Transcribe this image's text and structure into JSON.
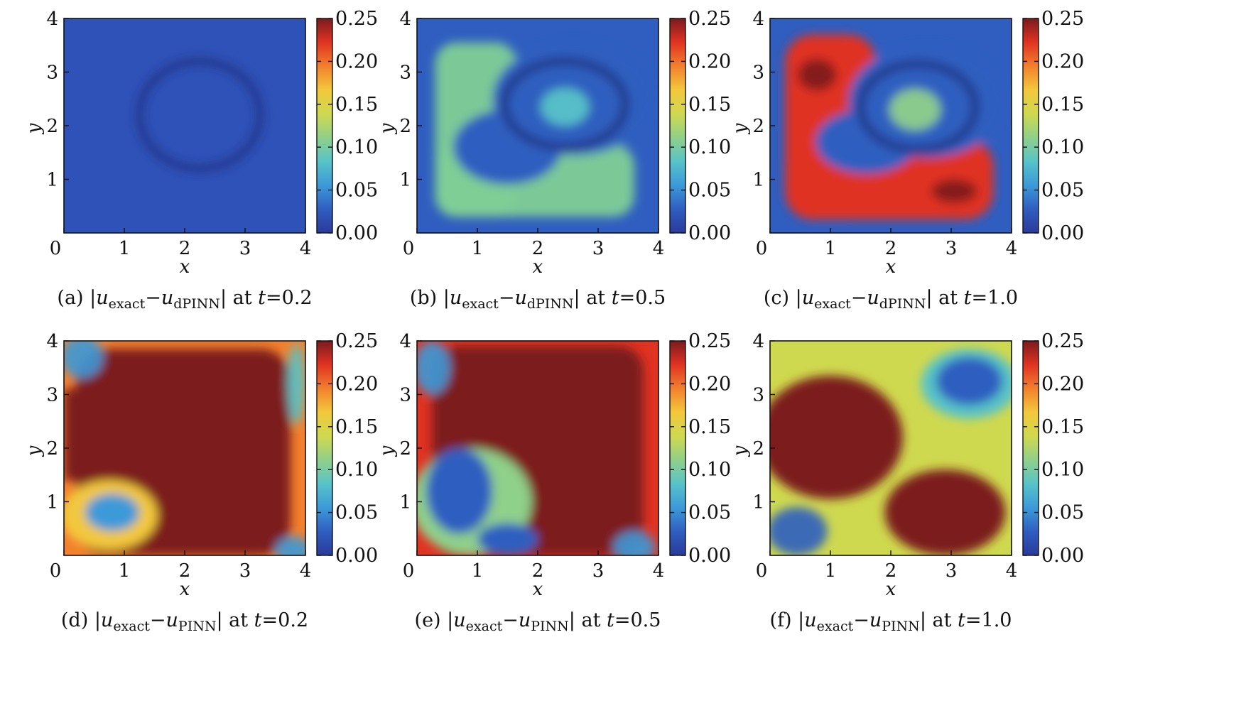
{
  "chart_data": [
    {
      "type": "heatmap",
      "caption": {
        "prefix": "(a) |",
        "u1": "u",
        "sub1": "exact",
        "minus": "−",
        "u2": "u",
        "sub2": "dPINN",
        "mid": "| at ",
        "t": "t",
        "eq": "=",
        "tval": "0.2"
      },
      "field": "dpinn_t02",
      "xlabel": "x",
      "ylabel": "y",
      "xlim": [
        0,
        4
      ],
      "ylim": [
        0,
        4
      ],
      "xticks": [
        "0",
        "1",
        "2",
        "3",
        "4"
      ],
      "yticks": [
        "1",
        "2",
        "3",
        "4"
      ],
      "colorbar": {
        "min": 0.0,
        "max": 0.25,
        "ticks": [
          "0.00",
          "0.05",
          "0.10",
          "0.15",
          "0.20",
          "0.25"
        ]
      }
    },
    {
      "type": "heatmap",
      "caption": {
        "prefix": "(b) |",
        "u1": "u",
        "sub1": "exact",
        "minus": "−",
        "u2": "u",
        "sub2": "dPINN",
        "mid": "| at ",
        "t": "t",
        "eq": "=",
        "tval": "0.5"
      },
      "field": "dpinn_t05",
      "xlabel": "x",
      "ylabel": "y",
      "xlim": [
        0,
        4
      ],
      "ylim": [
        0,
        4
      ],
      "xticks": [
        "0",
        "1",
        "2",
        "3",
        "4"
      ],
      "yticks": [
        "1",
        "2",
        "3",
        "4"
      ],
      "colorbar": {
        "min": 0.0,
        "max": 0.25,
        "ticks": [
          "0.00",
          "0.05",
          "0.10",
          "0.15",
          "0.20",
          "0.25"
        ]
      }
    },
    {
      "type": "heatmap",
      "caption": {
        "prefix": "(c) |",
        "u1": "u",
        "sub1": "exact",
        "minus": "−",
        "u2": "u",
        "sub2": "dPINN",
        "mid": "| at ",
        "t": "t",
        "eq": "=",
        "tval": "1.0"
      },
      "field": "dpinn_t10",
      "xlabel": "x",
      "ylabel": "y",
      "xlim": [
        0,
        4
      ],
      "ylim": [
        0,
        4
      ],
      "xticks": [
        "0",
        "1",
        "2",
        "3",
        "4"
      ],
      "yticks": [
        "1",
        "2",
        "3",
        "4"
      ],
      "colorbar": {
        "min": 0.0,
        "max": 0.25,
        "ticks": [
          "0.00",
          "0.05",
          "0.10",
          "0.15",
          "0.20",
          "0.25"
        ]
      }
    },
    {
      "type": "heatmap",
      "caption": {
        "prefix": "(d) |",
        "u1": "u",
        "sub1": "exact",
        "minus": "−",
        "u2": "u",
        "sub2": "PINN",
        "mid": "| at ",
        "t": "t",
        "eq": "=",
        "tval": "0.2"
      },
      "field": "pinn_t02",
      "xlabel": "x",
      "ylabel": "y",
      "xlim": [
        0,
        4
      ],
      "ylim": [
        0,
        4
      ],
      "xticks": [
        "0",
        "1",
        "2",
        "3",
        "4"
      ],
      "yticks": [
        "1",
        "2",
        "3",
        "4"
      ],
      "colorbar": {
        "min": 0.0,
        "max": 0.25,
        "ticks": [
          "0.00",
          "0.05",
          "0.10",
          "0.15",
          "0.20",
          "0.25"
        ]
      }
    },
    {
      "type": "heatmap",
      "caption": {
        "prefix": "(e) |",
        "u1": "u",
        "sub1": "exact",
        "minus": "−",
        "u2": "u",
        "sub2": "PINN",
        "mid": "| at ",
        "t": "t",
        "eq": "=",
        "tval": "0.5"
      },
      "field": "pinn_t05",
      "xlabel": "x",
      "ylabel": "y",
      "xlim": [
        0,
        4
      ],
      "ylim": [
        0,
        4
      ],
      "xticks": [
        "0",
        "1",
        "2",
        "3",
        "4"
      ],
      "yticks": [
        "1",
        "2",
        "3",
        "4"
      ],
      "colorbar": {
        "min": 0.0,
        "max": 0.25,
        "ticks": [
          "0.00",
          "0.05",
          "0.10",
          "0.15",
          "0.20",
          "0.25"
        ]
      }
    },
    {
      "type": "heatmap",
      "caption": {
        "prefix": "(f) |",
        "u1": "u",
        "sub1": "exact",
        "minus": "−",
        "u2": "u",
        "sub2": "PINN",
        "mid": "| at ",
        "t": "t",
        "eq": "=",
        "tval": "1.0"
      },
      "field": "pinn_t10",
      "xlabel": "x",
      "ylabel": "y",
      "xlim": [
        0,
        4
      ],
      "ylim": [
        0,
        4
      ],
      "xticks": [
        "0",
        "1",
        "2",
        "3",
        "4"
      ],
      "yticks": [
        "1",
        "2",
        "3",
        "4"
      ],
      "colorbar": {
        "min": 0.0,
        "max": 0.25,
        "ticks": [
          "0.00",
          "0.05",
          "0.10",
          "0.15",
          "0.20",
          "0.25"
        ]
      }
    }
  ],
  "colormap": [
    "#2a3a9a",
    "#2f5ec0",
    "#3c9ad8",
    "#58c3c8",
    "#8fd08a",
    "#cfd94f",
    "#f2c83c",
    "#f2802d",
    "#e03322",
    "#7b1a1e"
  ]
}
